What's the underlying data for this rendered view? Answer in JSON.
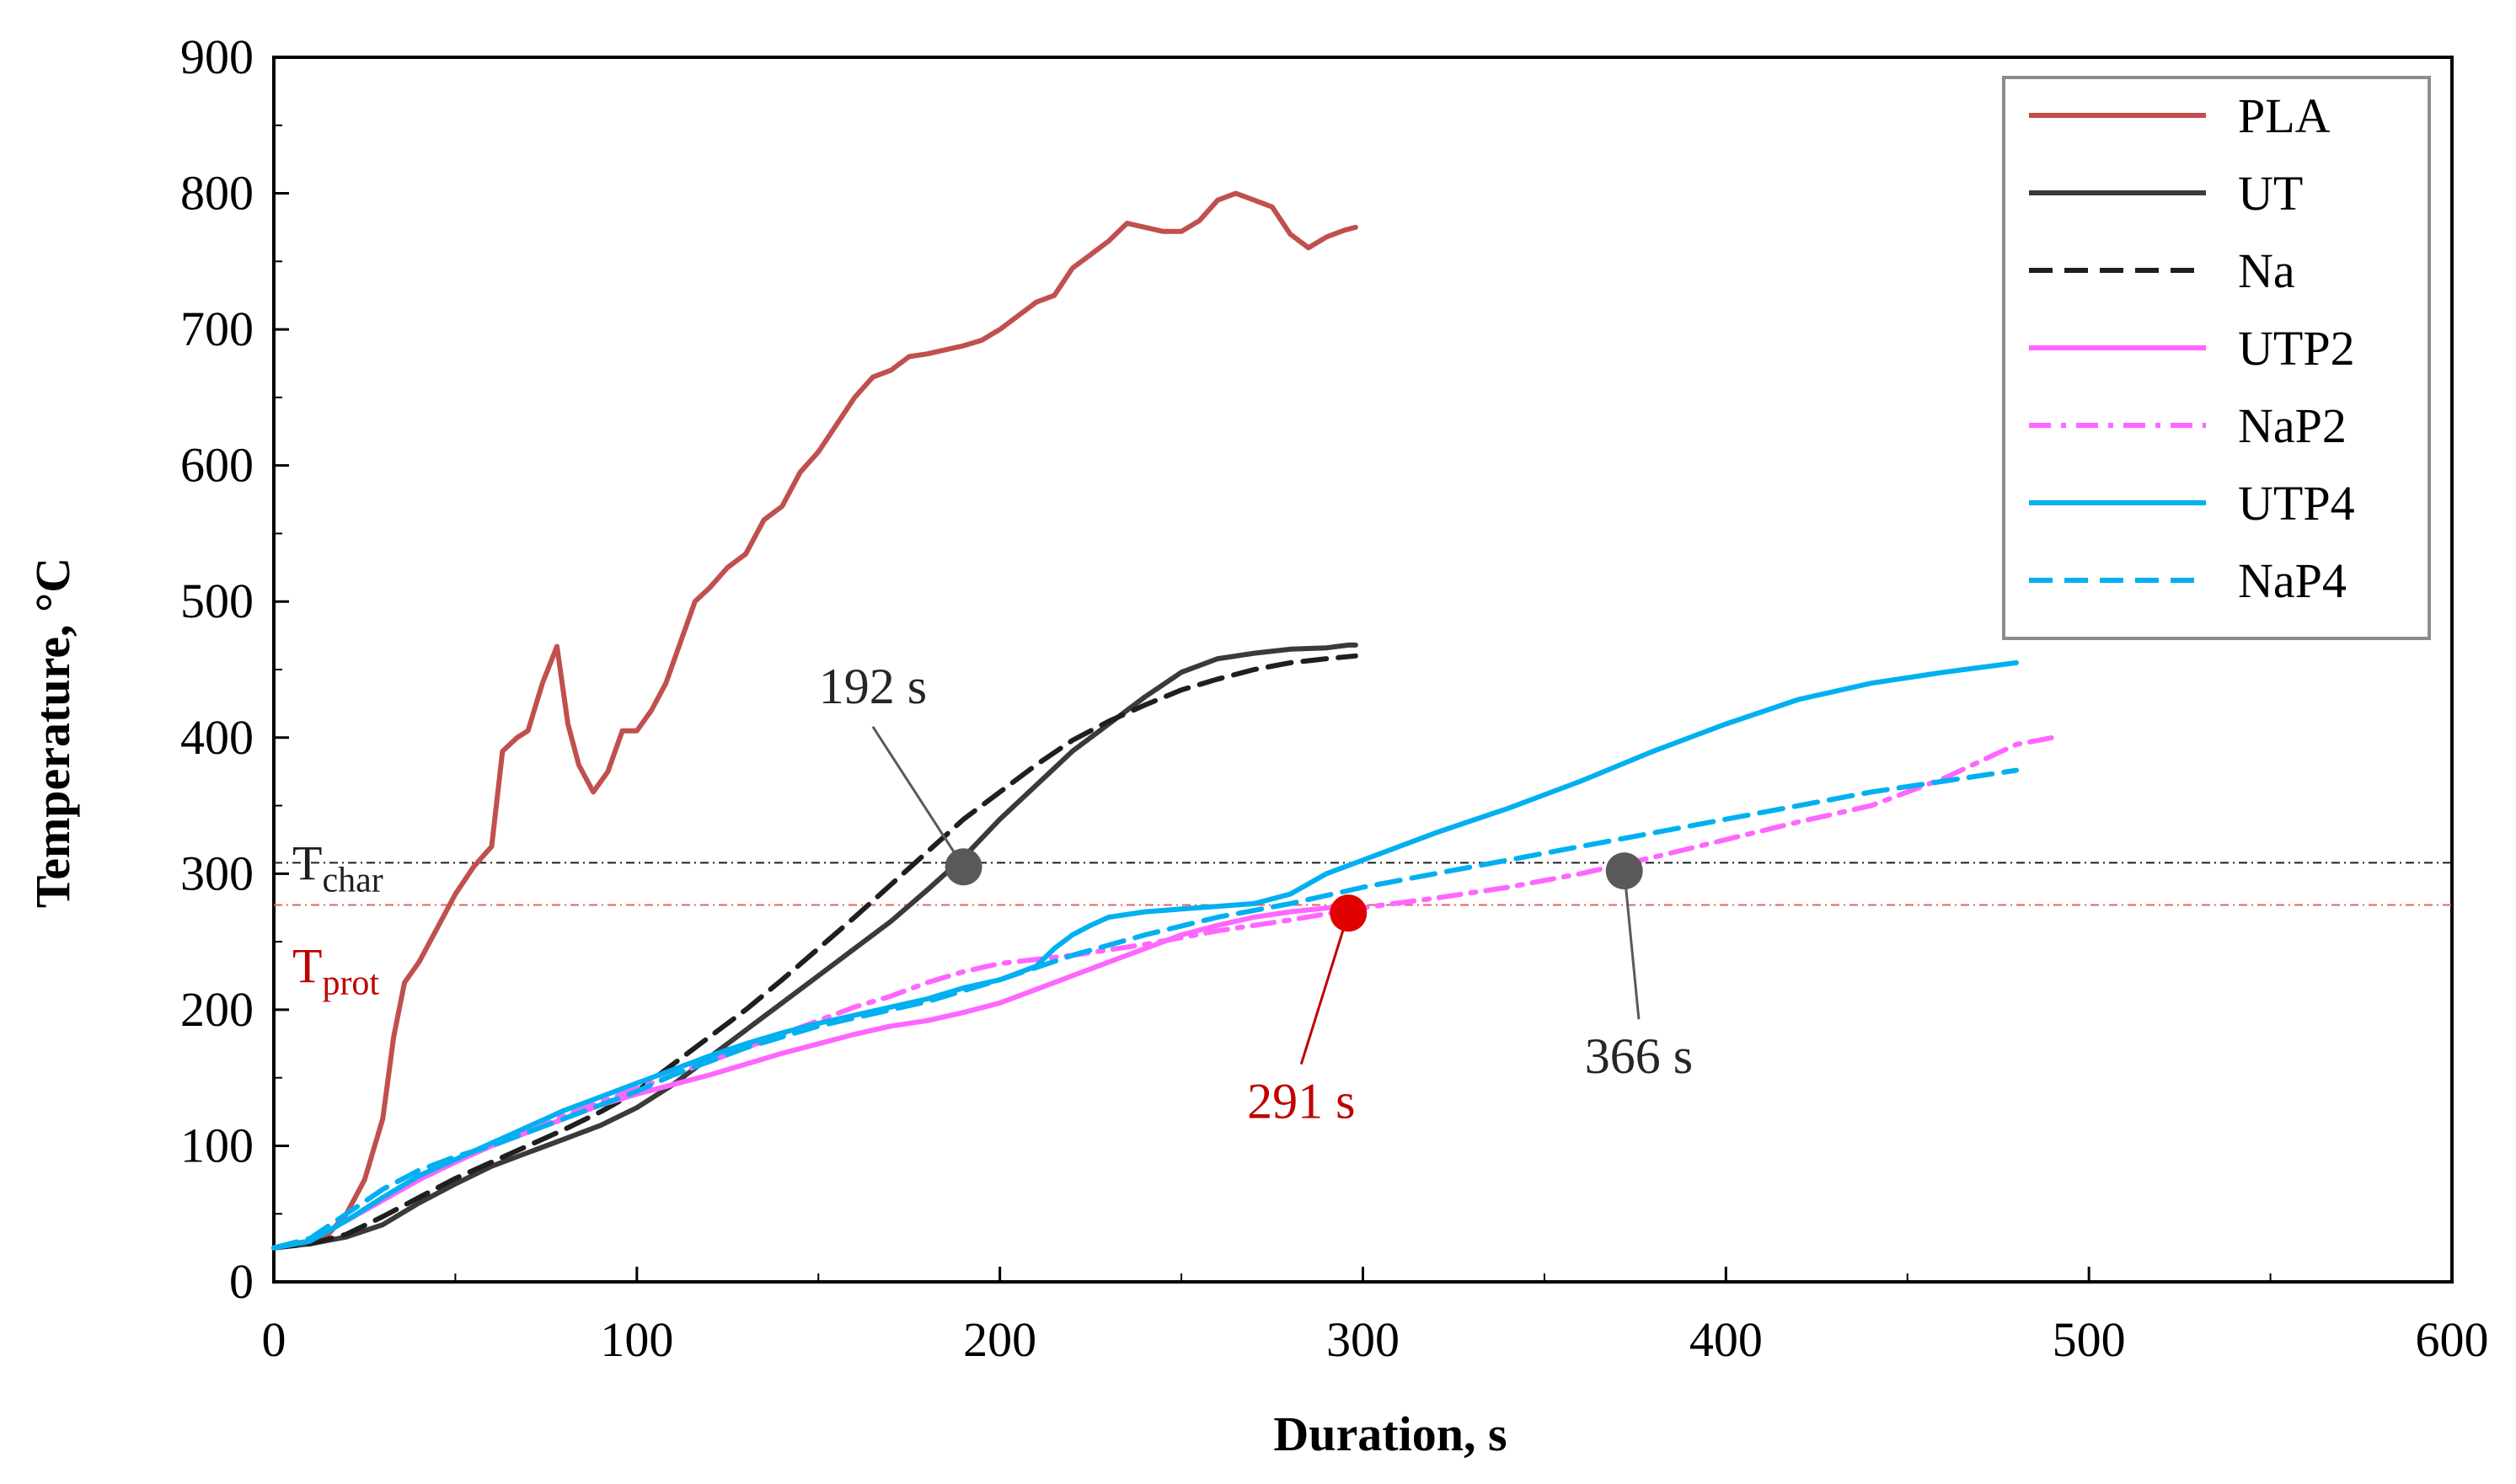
{
  "chart_data": {
    "type": "line",
    "title": "",
    "xlabel": "Duration, s",
    "ylabel": "Temperature, °C",
    "xlim": [
      0,
      600
    ],
    "ylim": [
      0,
      900
    ],
    "xticks": [
      "0",
      "100",
      "200",
      "300",
      "400",
      "500",
      "600"
    ],
    "yticks": [
      "0",
      "100",
      "200",
      "300",
      "400",
      "500",
      "600",
      "700",
      "800",
      "900"
    ],
    "legend_position": "top-right",
    "series": [
      {
        "name": "PLA",
        "color": "#C0504D",
        "dash": "solid",
        "x": [
          0,
          5,
          10,
          15,
          20,
          25,
          30,
          33,
          36,
          40,
          45,
          50,
          55,
          60,
          63,
          67,
          70,
          74,
          78,
          81,
          84,
          88,
          92,
          96,
          100,
          104,
          108,
          112,
          116,
          120,
          125,
          130,
          135,
          140,
          145,
          150,
          155,
          160,
          165,
          170,
          175,
          180,
          185,
          190,
          195,
          200,
          205,
          210,
          215,
          220,
          225,
          230,
          235,
          240,
          245,
          250,
          255,
          260,
          265,
          270,
          275,
          280,
          285,
          290,
          295,
          298
        ],
        "y": [
          25,
          28,
          30,
          35,
          50,
          75,
          120,
          180,
          220,
          235,
          260,
          285,
          305,
          320,
          390,
          400,
          405,
          440,
          467,
          410,
          380,
          360,
          375,
          405,
          405,
          420,
          440,
          470,
          500,
          510,
          525,
          535,
          560,
          570,
          595,
          610,
          630,
          650,
          665,
          670,
          680,
          682,
          685,
          688,
          692,
          700,
          710,
          720,
          725,
          745,
          755,
          765,
          778,
          775,
          772,
          772,
          780,
          795,
          800,
          795,
          790,
          770,
          760,
          768,
          773,
          775
        ]
      },
      {
        "name": "UT",
        "color": "#3A3A3A",
        "dash": "solid",
        "x": [
          0,
          10,
          20,
          30,
          40,
          50,
          60,
          70,
          80,
          90,
          100,
          110,
          120,
          130,
          140,
          150,
          160,
          170,
          180,
          190,
          200,
          210,
          220,
          230,
          240,
          250,
          260,
          270,
          280,
          290,
          296,
          298
        ],
        "y": [
          25,
          28,
          33,
          42,
          58,
          72,
          85,
          95,
          105,
          115,
          128,
          145,
          165,
          185,
          205,
          225,
          245,
          265,
          288,
          312,
          340,
          365,
          390,
          410,
          430,
          448,
          458,
          462,
          465,
          466,
          468,
          468
        ]
      },
      {
        "name": "Na",
        "color": "#1F1F1F",
        "dash": "dashed",
        "x": [
          0,
          10,
          20,
          30,
          40,
          50,
          60,
          70,
          80,
          90,
          100,
          110,
          120,
          130,
          140,
          150,
          160,
          170,
          180,
          190,
          200,
          210,
          220,
          230,
          240,
          250,
          260,
          270,
          280,
          290,
          298
        ],
        "y": [
          25,
          28,
          35,
          48,
          62,
          76,
          88,
          100,
          112,
          125,
          140,
          160,
          180,
          200,
          222,
          245,
          268,
          292,
          316,
          340,
          360,
          380,
          398,
          412,
          424,
          435,
          443,
          450,
          455,
          458,
          460
        ]
      },
      {
        "name": "UTP2",
        "color": "#FF66FF",
        "dash": "solid",
        "x": [
          0,
          10,
          20,
          30,
          40,
          50,
          60,
          70,
          80,
          90,
          100,
          110,
          120,
          130,
          140,
          150,
          160,
          170,
          180,
          190,
          200,
          210,
          220,
          230,
          240,
          250,
          260,
          270,
          280,
          291,
          298
        ],
        "y": [
          25,
          30,
          45,
          60,
          75,
          88,
          100,
          110,
          120,
          130,
          138,
          145,
          152,
          160,
          168,
          175,
          182,
          188,
          192,
          198,
          205,
          215,
          225,
          235,
          245,
          255,
          262,
          268,
          272,
          275,
          278
        ]
      },
      {
        "name": "NaP2",
        "color": "#FF66FF",
        "dash": "dashdot",
        "x": [
          0,
          10,
          20,
          30,
          40,
          50,
          60,
          70,
          80,
          90,
          100,
          110,
          120,
          130,
          140,
          150,
          160,
          170,
          180,
          190,
          200,
          220,
          240,
          260,
          280,
          300,
          320,
          340,
          360,
          380,
          400,
          420,
          440,
          460,
          480,
          490
        ],
        "y": [
          25,
          30,
          45,
          60,
          75,
          88,
          100,
          110,
          122,
          132,
          142,
          152,
          162,
          172,
          182,
          192,
          202,
          210,
          220,
          228,
          234,
          240,
          248,
          258,
          266,
          275,
          282,
          290,
          300,
          312,
          325,
          338,
          350,
          370,
          395,
          400
        ]
      },
      {
        "name": "UTP4",
        "color": "#00B0F0",
        "dash": "solid",
        "x": [
          0,
          10,
          20,
          30,
          40,
          50,
          60,
          70,
          80,
          90,
          100,
          110,
          120,
          130,
          140,
          150,
          160,
          170,
          180,
          190,
          200,
          210,
          215,
          220,
          225,
          230,
          240,
          250,
          260,
          270,
          280,
          290,
          300,
          320,
          340,
          360,
          380,
          400,
          420,
          440,
          460,
          480
        ],
        "y": [
          25,
          30,
          45,
          62,
          78,
          90,
          102,
          114,
          126,
          136,
          146,
          156,
          166,
          175,
          183,
          190,
          196,
          202,
          208,
          216,
          222,
          232,
          245,
          255,
          262,
          268,
          272,
          274,
          276,
          278,
          285,
          300,
          310,
          330,
          348,
          368,
          390,
          410,
          428,
          440,
          448,
          455
        ]
      },
      {
        "name": "NaP4",
        "color": "#00B0F0",
        "dash": "dashed",
        "x": [
          0,
          10,
          20,
          30,
          40,
          50,
          60,
          70,
          80,
          90,
          100,
          110,
          120,
          130,
          140,
          150,
          160,
          170,
          180,
          190,
          200,
          220,
          240,
          260,
          280,
          300,
          320,
          340,
          360,
          380,
          400,
          420,
          440,
          460,
          480
        ],
        "y": [
          25,
          32,
          50,
          68,
          82,
          92,
          100,
          110,
          120,
          130,
          140,
          152,
          162,
          172,
          180,
          188,
          194,
          200,
          206,
          214,
          222,
          240,
          255,
          268,
          278,
          290,
          300,
          310,
          320,
          330,
          340,
          350,
          360,
          368,
          376
        ]
      }
    ],
    "reference_lines": [
      {
        "name": "T_char",
        "label_main": "T",
        "label_sub": "char",
        "y": 308,
        "color": "#1F1F1F",
        "label_color": "#1F1F1F"
      },
      {
        "name": "T_prot",
        "label_main": "T",
        "label_sub": "prot",
        "y": 277,
        "color": "#E06666",
        "label_color": "#C00000"
      }
    ],
    "annotations": [
      {
        "name": "annotation-192s",
        "text": "192 s",
        "point": [
          190,
          305
        ],
        "label_at": [
          165,
          408
        ],
        "marker_color": "#595959",
        "text_color": "#262626",
        "line_color": "#595959"
      },
      {
        "name": "annotation-291s",
        "text": "291 s",
        "point": [
          296,
          271
        ],
        "label_at": [
          283,
          160
        ],
        "marker_color": "#E00000",
        "text_color": "#C00000",
        "line_color": "#C00000"
      },
      {
        "name": "annotation-366s",
        "text": "366 s",
        "point": [
          372,
          302
        ],
        "label_at": [
          376,
          193
        ],
        "marker_color": "#595959",
        "text_color": "#262626",
        "line_color": "#595959"
      }
    ]
  }
}
